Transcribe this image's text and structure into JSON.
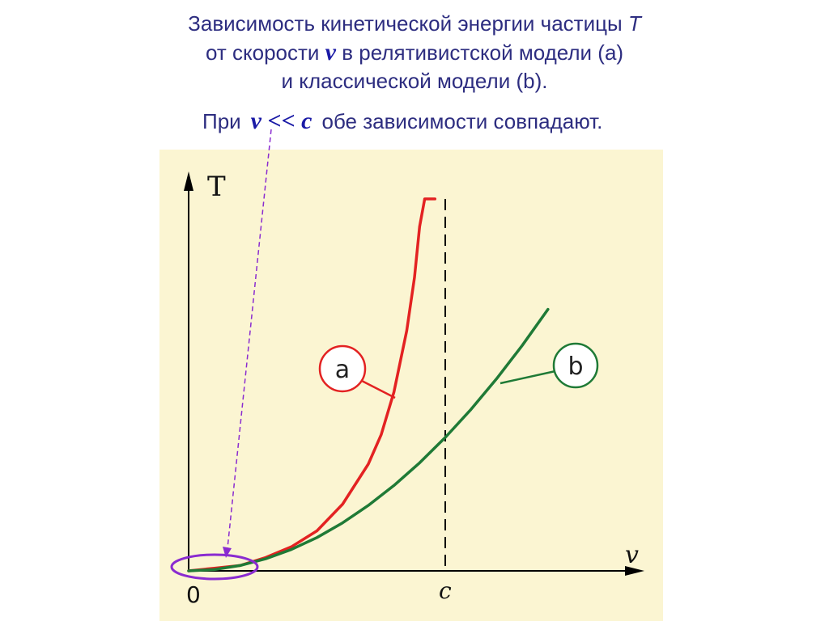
{
  "title": {
    "line1_text": "Зависимость кинетической энергии частицы",
    "line1_symbol": "T",
    "line2_prefix": "от скорости",
    "line2_symbol": "v",
    "line2_suffix": "в релятивистской модели (a)",
    "line3": "и классической модели (b)."
  },
  "note": {
    "prefix": "При",
    "condition": "v << c",
    "suffix": "обе зависимости совпадают."
  },
  "colors": {
    "panel_bg": "#fbf5d2",
    "relativistic": "#e32222",
    "classical": "#1f7a36",
    "highlight": "#8a2bd0",
    "axis": "#000000",
    "text": "#2d2d80"
  },
  "chart_data": {
    "type": "line",
    "xlabel": "v",
    "ylabel": "T",
    "x_ticks": [
      "0",
      "c"
    ],
    "c_value": 1,
    "xlim": [
      0,
      1.45
    ],
    "ylim": [
      0,
      1.9
    ],
    "asymptote_x": 1,
    "series": [
      {
        "name": "a",
        "model": "relativistic",
        "x": [
          0,
          0.1,
          0.2,
          0.3,
          0.4,
          0.5,
          0.6,
          0.7,
          0.75,
          0.8,
          0.85,
          0.88,
          0.9,
          0.92,
          0.94,
          0.96
        ],
        "y": [
          0,
          0.01,
          0.02,
          0.05,
          0.09,
          0.15,
          0.25,
          0.4,
          0.51,
          0.67,
          0.9,
          1.1,
          1.29,
          1.55,
          1.93,
          2.57
        ]
      },
      {
        "name": "b",
        "model": "classical",
        "x": [
          0,
          0.1,
          0.2,
          0.3,
          0.4,
          0.5,
          0.6,
          0.7,
          0.8,
          0.9,
          1.0,
          1.1,
          1.2,
          1.3,
          1.4
        ],
        "y": [
          0,
          0.005,
          0.02,
          0.045,
          0.08,
          0.125,
          0.18,
          0.245,
          0.32,
          0.405,
          0.5,
          0.605,
          0.72,
          0.845,
          0.98
        ]
      }
    ],
    "grid": false,
    "legend": "circled labels a and b on the curves"
  }
}
